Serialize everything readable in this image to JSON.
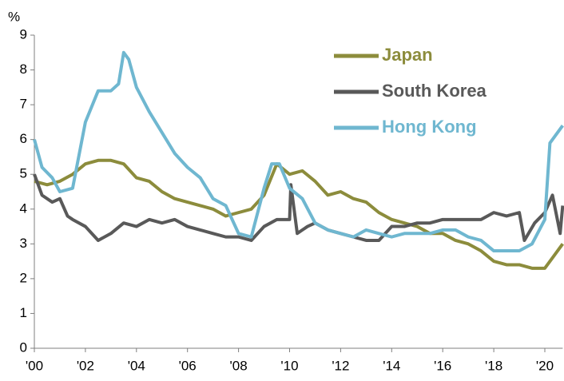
{
  "chart_data": {
    "type": "line",
    "y_label": "%",
    "xlim": [
      2000,
      2020.7
    ],
    "xticks": [
      {
        "value": 2000,
        "label": "'00"
      },
      {
        "value": 2002,
        "label": "'02"
      },
      {
        "value": 2004,
        "label": "'04"
      },
      {
        "value": 2006,
        "label": "'06"
      },
      {
        "value": 2008,
        "label": "'08"
      },
      {
        "value": 2010,
        "label": "'10"
      },
      {
        "value": 2012,
        "label": "'12"
      },
      {
        "value": 2014,
        "label": "'14"
      },
      {
        "value": 2016,
        "label": "'16"
      },
      {
        "value": 2018,
        "label": "'18"
      },
      {
        "value": 2020,
        "label": "'20"
      }
    ],
    "ylim": [
      0,
      9
    ],
    "yticks": [
      0,
      1,
      2,
      3,
      4,
      5,
      6,
      7,
      8,
      9
    ],
    "grid": false,
    "legend": "top-right",
    "series": [
      {
        "name": "Japan",
        "color": "#8c8c3c",
        "x": [
          2000,
          2000.5,
          2001,
          2001.5,
          2002,
          2002.5,
          2003,
          2003.5,
          2004,
          2004.5,
          2005,
          2005.5,
          2006,
          2006.5,
          2007,
          2007.5,
          2008,
          2008.5,
          2009,
          2009.5,
          2010,
          2010.5,
          2011,
          2011.5,
          2012,
          2012.5,
          2013,
          2013.5,
          2014,
          2014.5,
          2015,
          2015.5,
          2016,
          2016.5,
          2017,
          2017.5,
          2018,
          2018.5,
          2019,
          2019.5,
          2020,
          2020.3,
          2020.7
        ],
        "values": [
          4.8,
          4.7,
          4.8,
          5.0,
          5.3,
          5.4,
          5.4,
          5.3,
          4.9,
          4.8,
          4.5,
          4.3,
          4.2,
          4.1,
          4.0,
          3.8,
          3.9,
          4.0,
          4.4,
          5.3,
          5.0,
          5.1,
          4.8,
          4.4,
          4.5,
          4.3,
          4.2,
          3.9,
          3.7,
          3.6,
          3.5,
          3.3,
          3.3,
          3.1,
          3.0,
          2.8,
          2.5,
          2.4,
          2.4,
          2.3,
          2.3,
          2.6,
          3.0
        ]
      },
      {
        "name": "South Korea",
        "color": "#595959",
        "x": [
          2000,
          2000.3,
          2000.7,
          2001,
          2001.3,
          2001.5,
          2002,
          2002.5,
          2003,
          2003.5,
          2004,
          2004.5,
          2005,
          2005.5,
          2006,
          2006.5,
          2007,
          2007.5,
          2008,
          2008.5,
          2009,
          2009.5,
          2010,
          2010.05,
          2010.3,
          2010.7,
          2011,
          2011.5,
          2012,
          2012.5,
          2013,
          2013.5,
          2014,
          2014.5,
          2015,
          2015.5,
          2016,
          2016.5,
          2017,
          2017.5,
          2018,
          2018.5,
          2019,
          2019.2,
          2019.6,
          2020,
          2020.3,
          2020.6,
          2020.7
        ],
        "values": [
          5.0,
          4.4,
          4.2,
          4.3,
          3.8,
          3.7,
          3.5,
          3.1,
          3.3,
          3.6,
          3.5,
          3.7,
          3.6,
          3.7,
          3.5,
          3.4,
          3.3,
          3.2,
          3.2,
          3.1,
          3.5,
          3.7,
          3.7,
          4.7,
          3.3,
          3.5,
          3.6,
          3.4,
          3.3,
          3.2,
          3.1,
          3.1,
          3.5,
          3.5,
          3.6,
          3.6,
          3.7,
          3.7,
          3.7,
          3.7,
          3.9,
          3.8,
          3.9,
          3.1,
          3.6,
          3.9,
          4.4,
          3.3,
          4.1
        ]
      },
      {
        "name": "Hong Kong",
        "color": "#6fb7d0",
        "x": [
          2000,
          2000.3,
          2000.7,
          2001,
          2001.5,
          2002,
          2002.5,
          2003,
          2003.3,
          2003.5,
          2003.7,
          2004,
          2004.5,
          2005,
          2005.5,
          2006,
          2006.5,
          2007,
          2007.5,
          2008,
          2008.5,
          2009,
          2009.3,
          2009.6,
          2010,
          2010.5,
          2011,
          2011.5,
          2012,
          2012.5,
          2013,
          2013.5,
          2014,
          2014.5,
          2015,
          2015.5,
          2016,
          2016.5,
          2017,
          2017.5,
          2018,
          2018.5,
          2019,
          2019.5,
          2020,
          2020.2,
          2020.5,
          2020.7
        ],
        "values": [
          6.0,
          5.2,
          4.9,
          4.5,
          4.6,
          6.5,
          7.4,
          7.4,
          7.6,
          8.5,
          8.3,
          7.5,
          6.8,
          6.2,
          5.6,
          5.2,
          4.9,
          4.3,
          4.1,
          3.3,
          3.2,
          4.6,
          5.3,
          5.3,
          4.6,
          4.3,
          3.6,
          3.4,
          3.3,
          3.2,
          3.4,
          3.3,
          3.2,
          3.3,
          3.3,
          3.3,
          3.4,
          3.4,
          3.2,
          3.1,
          2.8,
          2.8,
          2.8,
          3.0,
          3.7,
          5.9,
          6.2,
          6.4
        ]
      }
    ]
  }
}
